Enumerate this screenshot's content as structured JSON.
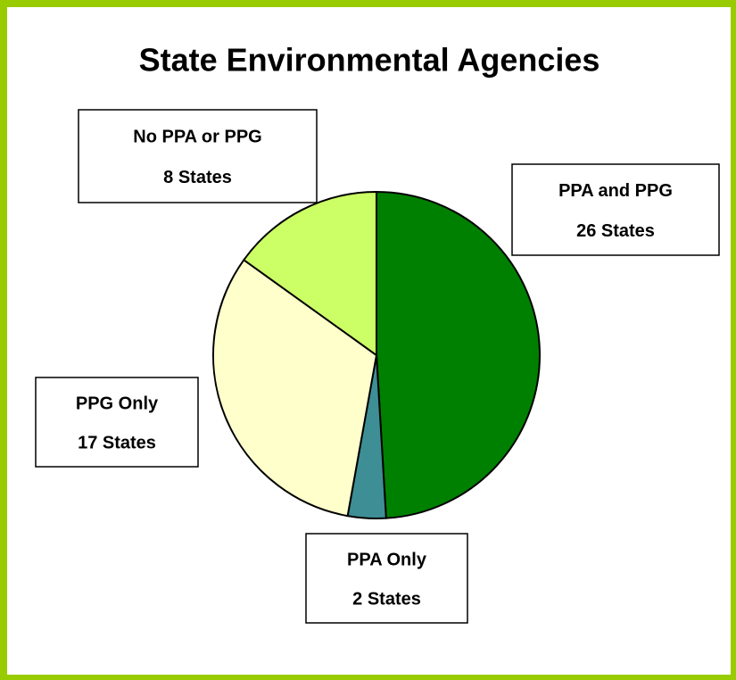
{
  "chart_data": {
    "type": "pie",
    "title": "State Environmental Agencies",
    "categories": [
      "PPA and PPG",
      "PPA Only",
      "PPG Only",
      "No PPA or PPG"
    ],
    "values": [
      26,
      2,
      17,
      8
    ],
    "value_labels": [
      "26 States",
      "2 States",
      "17 States",
      "8 States"
    ],
    "colors": [
      "#008000",
      "#3e8e96",
      "#ffffcc",
      "#ccff66"
    ]
  }
}
